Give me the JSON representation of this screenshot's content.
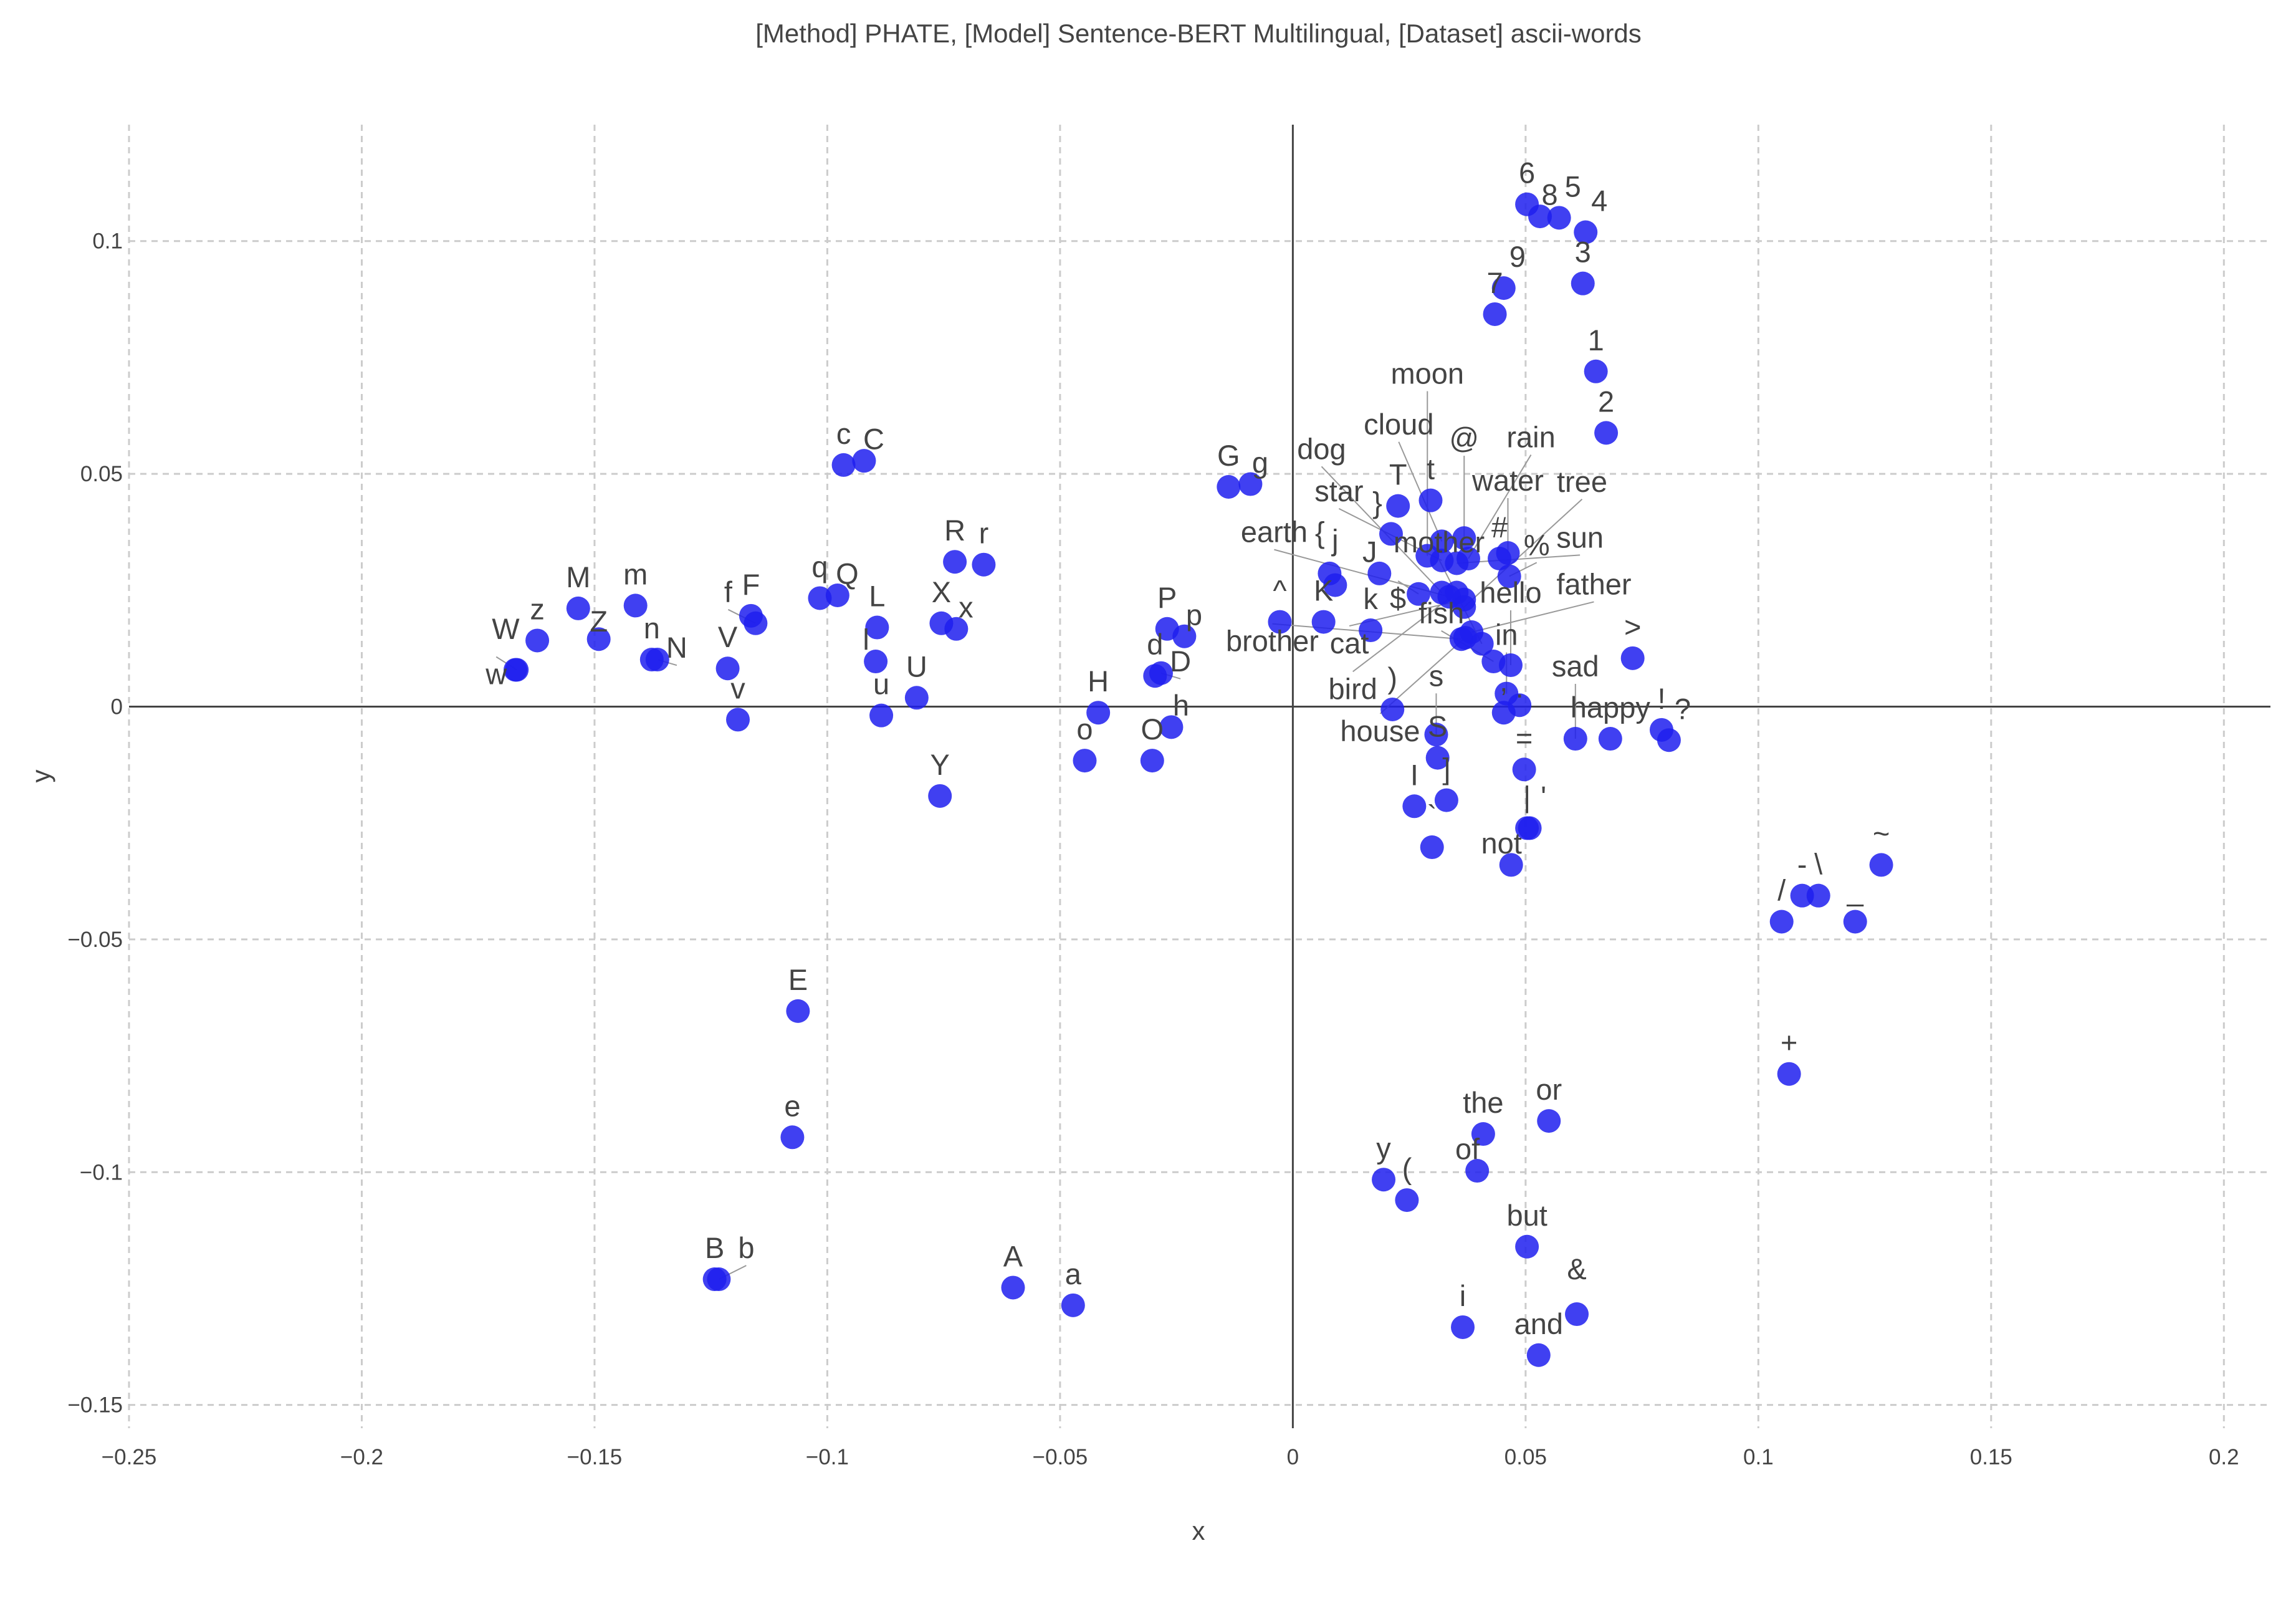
{
  "chart_data": {
    "type": "scatter",
    "title": "[Method] PHATE, [Model] Sentence-BERT Multilingual, [Dataset] ascii-words",
    "xlabel": "x",
    "ylabel": "y",
    "xlim": [
      -0.25,
      0.21
    ],
    "ylim": [
      -0.155,
      0.125
    ],
    "xticks": [
      -0.25,
      -0.2,
      -0.15,
      -0.1,
      -0.05,
      0,
      0.05,
      0.1,
      0.15,
      0.2
    ],
    "xtick_labels": [
      "−0.25",
      "−0.2",
      "−0.15",
      "−0.1",
      "−0.05",
      "0",
      "0.05",
      "0.1",
      "0.15",
      "0.2"
    ],
    "yticks": [
      0.1,
      0.05,
      0,
      -0.05,
      -0.1,
      -0.15
    ],
    "ytick_labels": [
      "0.1",
      "0.05",
      "0",
      "−0.05",
      "−0.1",
      "−0.15"
    ],
    "grid": true,
    "marker_color": "#1f1fef",
    "points": [
      {
        "label": "6",
        "x": 0.0503,
        "y": 0.1079
      },
      {
        "label": "8",
        "x": 0.0531,
        "y": 0.1053
      },
      {
        "label": "5",
        "x": 0.0572,
        "y": 0.105
      },
      {
        "label": "4",
        "x": 0.0629,
        "y": 0.1019
      },
      {
        "label": "9",
        "x": 0.0453,
        "y": 0.0899
      },
      {
        "label": "7",
        "x": 0.0434,
        "y": 0.0843
      },
      {
        "label": "3",
        "x": 0.0623,
        "y": 0.0909
      },
      {
        "label": "1",
        "x": 0.0651,
        "y": 0.072
      },
      {
        "label": "2",
        "x": 0.0673,
        "y": 0.0588
      },
      {
        "label": "c",
        "x": -0.0965,
        "y": 0.0519
      },
      {
        "label": "C",
        "x": -0.0921,
        "y": 0.0528
      },
      {
        "label": "G",
        "x": -0.0138,
        "y": 0.0472
      },
      {
        "label": "g",
        "x": -0.0091,
        "y": 0.0478
      },
      {
        "label": "R",
        "x": -0.0726,
        "y": 0.0311
      },
      {
        "label": "r",
        "x": -0.0664,
        "y": 0.0305
      },
      {
        "label": "T",
        "x": 0.0226,
        "y": 0.0431
      },
      {
        "label": "t",
        "x": 0.0296,
        "y": 0.0443
      },
      {
        "label": "}",
        "x": 0.0211,
        "y": 0.0371
      },
      {
        "label": "{",
        "x": 0.0079,
        "y": 0.0286
      },
      {
        "label": "j",
        "x": 0.0091,
        "y": 0.0261
      },
      {
        "label": "J",
        "x": 0.0186,
        "y": 0.0286
      },
      {
        "label": "K",
        "x": 0.0066,
        "y": 0.0182
      },
      {
        "label": "k",
        "x": 0.0167,
        "y": 0.0164
      },
      {
        "label": "^",
        "x": -0.0028,
        "y": 0.0182
      },
      {
        "label": "M",
        "x": -0.1535,
        "y": 0.0211
      },
      {
        "label": "m",
        "x": -0.1412,
        "y": 0.0217
      },
      {
        "label": "z",
        "x": -0.1623,
        "y": 0.0142
      },
      {
        "label": "Z",
        "x": -0.1491,
        "y": 0.0145
      },
      {
        "label": "W",
        "x": -0.167,
        "y": 0.0079
      },
      {
        "label": "w",
        "x": -0.1667,
        "y": 0.0079
      },
      {
        "label": "n",
        "x": -0.1377,
        "y": 0.0101
      },
      {
        "label": "N",
        "x": -0.1365,
        "y": 0.0101
      },
      {
        "label": "F",
        "x": -0.1164,
        "y": 0.0195
      },
      {
        "label": "f",
        "x": -0.1154,
        "y": 0.0179
      },
      {
        "label": "V",
        "x": -0.1214,
        "y": 0.0082
      },
      {
        "label": "v",
        "x": -0.1192,
        "y": -0.0028
      },
      {
        "label": "q",
        "x": -0.1016,
        "y": 0.0233
      },
      {
        "label": "Q",
        "x": -0.0978,
        "y": 0.0239
      },
      {
        "label": "L",
        "x": -0.0893,
        "y": 0.017
      },
      {
        "label": "l",
        "x": -0.0896,
        "y": 0.0097
      },
      {
        "label": "u",
        "x": -0.0884,
        "y": -0.0019
      },
      {
        "label": "U",
        "x": -0.0808,
        "y": 0.0019
      },
      {
        "label": "X",
        "x": -0.0755,
        "y": 0.0179
      },
      {
        "label": "x",
        "x": -0.0723,
        "y": 0.0167
      },
      {
        "label": "P",
        "x": -0.027,
        "y": 0.0167
      },
      {
        "label": "p",
        "x": -0.0233,
        "y": 0.0151
      },
      {
        "label": "d",
        "x": -0.0296,
        "y": 0.0066
      },
      {
        "label": "D",
        "x": -0.0283,
        "y": 0.0072
      },
      {
        "label": "H",
        "x": -0.0418,
        "y": -0.0013
      },
      {
        "label": "h",
        "x": -0.0261,
        "y": -0.0044
      },
      {
        "label": "o",
        "x": -0.0447,
        "y": -0.0116
      },
      {
        "label": "O",
        "x": -0.0302,
        "y": -0.0116
      },
      {
        "label": "Y",
        "x": -0.0758,
        "y": -0.0192
      },
      {
        "label": "E",
        "x": -0.1063,
        "y": -0.0654
      },
      {
        "label": "e",
        "x": -0.1075,
        "y": -0.0925
      },
      {
        "label": "B",
        "x": -0.1242,
        "y": -0.123
      },
      {
        "label": "b",
        "x": -0.1233,
        "y": -0.123
      },
      {
        "label": "A",
        "x": -0.0601,
        "y": -0.1248
      },
      {
        "label": "a",
        "x": -0.0472,
        "y": -0.1286
      },
      {
        "label": "y",
        "x": 0.0195,
        "y": -0.1016
      },
      {
        "label": "(",
        "x": 0.0245,
        "y": -0.106
      },
      {
        "label": "the",
        "x": 0.0409,
        "y": -0.0918
      },
      {
        "label": "of",
        "x": 0.0396,
        "y": -0.0997
      },
      {
        "label": "or",
        "x": 0.055,
        "y": -0.089
      },
      {
        "label": "but",
        "x": 0.0503,
        "y": -0.116
      },
      {
        "label": "i",
        "x": 0.0365,
        "y": -0.1333
      },
      {
        "label": "and",
        "x": 0.0528,
        "y": -0.1393
      },
      {
        "label": "&",
        "x": 0.061,
        "y": -0.1305
      },
      {
        "label": "+",
        "x": 0.1066,
        "y": -0.0789
      },
      {
        "label": "/",
        "x": 0.105,
        "y": -0.0462
      },
      {
        "label": "-",
        "x": 0.1094,
        "y": -0.0406
      },
      {
        "label": "\\",
        "x": 0.1129,
        "y": -0.0406
      },
      {
        "label": "_",
        "x": 0.1208,
        "y": -0.0462
      },
      {
        "label": "~",
        "x": 0.1264,
        "y": -0.034
      },
      {
        "label": ">",
        "x": 0.073,
        "y": 0.0104
      },
      {
        "label": "sad",
        "x": 0.0607,
        "y": -0.0069
      },
      {
        "label": "happy",
        "x": 0.0682,
        "y": -0.0069
      },
      {
        "label": "!",
        "x": 0.0792,
        "y": -0.005
      },
      {
        "label": "?",
        "x": 0.0808,
        "y": -0.0072
      },
      {
        "label": ")",
        "x": 0.0214,
        "y": -0.0006
      },
      {
        "label": "s",
        "x": 0.0308,
        "y": -0.006
      },
      {
        "label": "S",
        "x": 0.0311,
        "y": -0.011
      },
      {
        "label": "I",
        "x": 0.0261,
        "y": -0.0214
      },
      {
        "label": "]",
        "x": 0.033,
        "y": -0.0201
      },
      {
        "label": "`",
        "x": 0.0299,
        "y": -0.0302
      },
      {
        "label": "=",
        "x": 0.0497,
        "y": -0.0135
      },
      {
        "label": "|",
        "x": 0.0503,
        "y": -0.0261
      },
      {
        "label": "'",
        "x": 0.0509,
        "y": -0.0261
      },
      {
        "label": "not",
        "x": 0.0469,
        "y": -0.034
      },
      {
        "label": "in",
        "x": 0.0459,
        "y": 0.0028
      },
      {
        "label": ".",
        "x": 0.0487,
        "y": 0.0003
      },
      {
        "label": ",",
        "x": 0.0453,
        "y": -0.0013
      },
      {
        "label": "fish",
        "x": 0.0431,
        "y": 0.0097
      },
      {
        "label": "hello",
        "x": 0.0468,
        "y": 0.0089
      },
      {
        "label": "brother",
        "x": 0.0362,
        "y": 0.0145
      },
      {
        "label": "father",
        "x": 0.0384,
        "y": 0.016
      },
      {
        "label": "mother",
        "x": 0.0406,
        "y": 0.0135
      },
      {
        "label": "house",
        "x": 0.037,
        "y": 0.0148
      },
      {
        "label": "earth",
        "x": 0.0336,
        "y": 0.0236
      },
      {
        "label": "bird",
        "x": 0.0352,
        "y": 0.0245
      },
      {
        "label": "cat",
        "x": 0.0368,
        "y": 0.023
      },
      {
        "label": "dog",
        "x": 0.032,
        "y": 0.0245
      },
      {
        "label": "tree",
        "x": 0.0368,
        "y": 0.0214
      },
      {
        "label": "moon",
        "x": 0.0289,
        "y": 0.0324
      },
      {
        "label": "star",
        "x": 0.032,
        "y": 0.0314
      },
      {
        "label": "sun",
        "x": 0.0352,
        "y": 0.0308
      },
      {
        "label": "rain",
        "x": 0.0377,
        "y": 0.0318
      },
      {
        "label": "#",
        "x": 0.0444,
        "y": 0.0318
      },
      {
        "label": "cloud",
        "x": 0.032,
        "y": 0.0355
      },
      {
        "label": "water",
        "x": 0.0462,
        "y": 0.033
      },
      {
        "label": "@",
        "x": 0.0368,
        "y": 0.0362
      },
      {
        "label": "$",
        "x": 0.027,
        "y": 0.0242
      },
      {
        "label": "%",
        "x": 0.0465,
        "y": 0.028
      }
    ]
  }
}
